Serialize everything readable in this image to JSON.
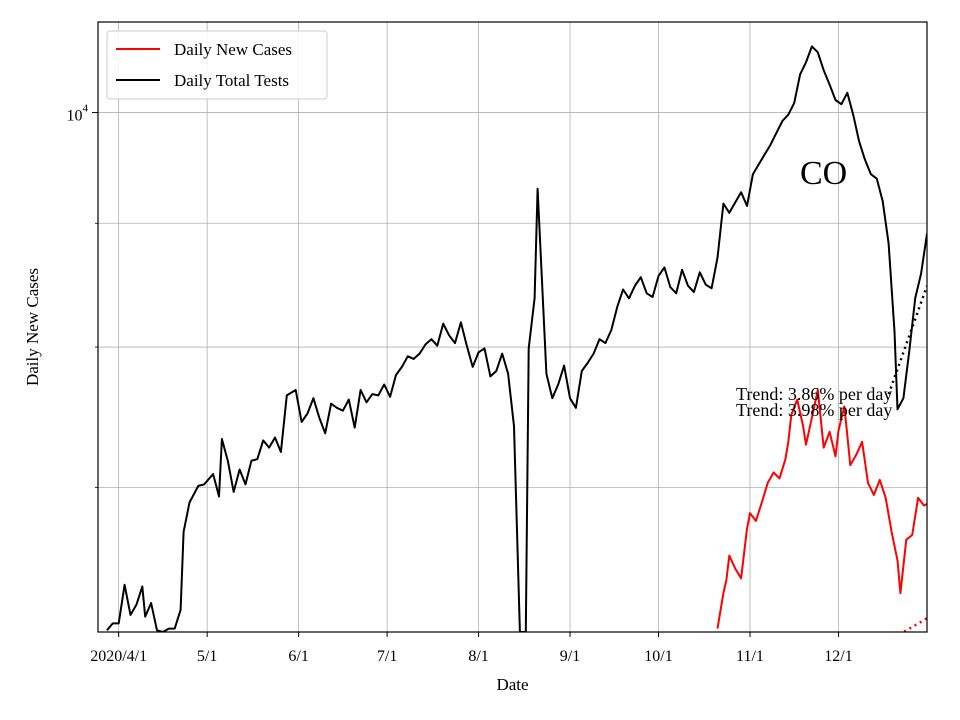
{
  "chart_data": {
    "type": "line",
    "x_axis_label": "Date",
    "y_axis_label": "Daily New Cases",
    "y_scale": "log",
    "x_tick_labels": [
      "2020/4/1",
      "5/1",
      "6/1",
      "7/1",
      "8/1",
      "9/1",
      "10/1",
      "11/1",
      "12/1"
    ],
    "x_tick_dates": [
      "2020-04-01",
      "2020-05-01",
      "2020-06-01",
      "2020-07-01",
      "2020-08-01",
      "2020-09-01",
      "2020-10-01",
      "2020-11-01",
      "2020-12-01"
    ],
    "x_range": [
      "2020-03-25",
      "2020-12-31"
    ],
    "y_range": [
      6100,
      10900
    ],
    "y_tick_label": {
      "base": "10",
      "exponent": "4",
      "value": 10000
    },
    "grid": true,
    "legend_position": "upper-left",
    "state_label": "CO",
    "series": [
      {
        "name": "Daily New Cases",
        "color": "#ff0000",
        "points": [
          [
            "2020-10-21",
            6120
          ],
          [
            "2020-10-23",
            6330
          ],
          [
            "2020-10-24",
            6410
          ],
          [
            "2020-10-25",
            6560
          ],
          [
            "2020-10-27",
            6480
          ],
          [
            "2020-10-29",
            6420
          ],
          [
            "2020-10-31",
            6730
          ],
          [
            "2020-11-01",
            6830
          ],
          [
            "2020-11-03",
            6780
          ],
          [
            "2020-11-05",
            6900
          ],
          [
            "2020-11-07",
            7030
          ],
          [
            "2020-11-09",
            7100
          ],
          [
            "2020-11-11",
            7060
          ],
          [
            "2020-11-13",
            7190
          ],
          [
            "2020-11-14",
            7310
          ],
          [
            "2020-11-15",
            7500
          ],
          [
            "2020-11-17",
            7610
          ],
          [
            "2020-11-19",
            7420
          ],
          [
            "2020-11-20",
            7290
          ],
          [
            "2020-11-22",
            7480
          ],
          [
            "2020-11-24",
            7680
          ],
          [
            "2020-11-26",
            7270
          ],
          [
            "2020-11-28",
            7380
          ],
          [
            "2020-11-30",
            7210
          ],
          [
            "2020-12-01",
            7390
          ],
          [
            "2020-12-03",
            7560
          ],
          [
            "2020-12-05",
            7150
          ],
          [
            "2020-12-07",
            7220
          ],
          [
            "2020-12-09",
            7310
          ],
          [
            "2020-12-11",
            7030
          ],
          [
            "2020-12-13",
            6950
          ],
          [
            "2020-12-15",
            7050
          ],
          [
            "2020-12-17",
            6930
          ],
          [
            "2020-12-19",
            6710
          ],
          [
            "2020-12-21",
            6530
          ],
          [
            "2020-12-22",
            6330
          ],
          [
            "2020-12-24",
            6660
          ],
          [
            "2020-12-26",
            6690
          ],
          [
            "2020-12-28",
            6930
          ],
          [
            "2020-12-30",
            6880
          ],
          [
            "2020-12-31",
            6890
          ]
        ]
      },
      {
        "name": "Daily Total Tests",
        "color": "#000000",
        "points": [
          [
            "2020-03-28",
            6110
          ],
          [
            "2020-03-30",
            6150
          ],
          [
            "2020-04-01",
            6150
          ],
          [
            "2020-04-03",
            6380
          ],
          [
            "2020-04-05",
            6200
          ],
          [
            "2020-04-07",
            6260
          ],
          [
            "2020-04-09",
            6370
          ],
          [
            "2020-04-10",
            6190
          ],
          [
            "2020-04-12",
            6270
          ],
          [
            "2020-04-14",
            6110
          ],
          [
            "2020-04-16",
            6100
          ],
          [
            "2020-04-18",
            6120
          ],
          [
            "2020-04-20",
            6120
          ],
          [
            "2020-04-22",
            6230
          ],
          [
            "2020-04-23",
            6710
          ],
          [
            "2020-04-25",
            6900
          ],
          [
            "2020-04-28",
            7010
          ],
          [
            "2020-04-30",
            7020
          ],
          [
            "2020-05-03",
            7090
          ],
          [
            "2020-05-05",
            6940
          ],
          [
            "2020-05-06",
            7330
          ],
          [
            "2020-05-08",
            7180
          ],
          [
            "2020-05-10",
            6970
          ],
          [
            "2020-05-12",
            7120
          ],
          [
            "2020-05-14",
            7020
          ],
          [
            "2020-05-16",
            7180
          ],
          [
            "2020-05-18",
            7190
          ],
          [
            "2020-05-20",
            7320
          ],
          [
            "2020-05-22",
            7270
          ],
          [
            "2020-05-24",
            7340
          ],
          [
            "2020-05-26",
            7240
          ],
          [
            "2020-05-28",
            7640
          ],
          [
            "2020-05-31",
            7680
          ],
          [
            "2020-06-02",
            7450
          ],
          [
            "2020-06-04",
            7510
          ],
          [
            "2020-06-06",
            7620
          ],
          [
            "2020-06-08",
            7480
          ],
          [
            "2020-06-10",
            7370
          ],
          [
            "2020-06-12",
            7580
          ],
          [
            "2020-06-14",
            7550
          ],
          [
            "2020-06-16",
            7530
          ],
          [
            "2020-06-18",
            7610
          ],
          [
            "2020-06-20",
            7410
          ],
          [
            "2020-06-22",
            7680
          ],
          [
            "2020-06-24",
            7590
          ],
          [
            "2020-06-26",
            7650
          ],
          [
            "2020-06-28",
            7640
          ],
          [
            "2020-06-30",
            7720
          ],
          [
            "2020-07-02",
            7630
          ],
          [
            "2020-07-04",
            7790
          ],
          [
            "2020-07-06",
            7850
          ],
          [
            "2020-07-08",
            7930
          ],
          [
            "2020-07-10",
            7910
          ],
          [
            "2020-07-12",
            7950
          ],
          [
            "2020-07-14",
            8020
          ],
          [
            "2020-07-16",
            8060
          ],
          [
            "2020-07-18",
            8010
          ],
          [
            "2020-07-20",
            8180
          ],
          [
            "2020-07-22",
            8090
          ],
          [
            "2020-07-24",
            8030
          ],
          [
            "2020-07-26",
            8190
          ],
          [
            "2020-07-28",
            8010
          ],
          [
            "2020-07-30",
            7850
          ],
          [
            "2020-08-01",
            7960
          ],
          [
            "2020-08-03",
            7990
          ],
          [
            "2020-08-05",
            7780
          ],
          [
            "2020-08-07",
            7820
          ],
          [
            "2020-08-09",
            7950
          ],
          [
            "2020-08-11",
            7800
          ],
          [
            "2020-08-13",
            7420
          ],
          [
            "2020-08-15",
            6100
          ],
          [
            "2020-08-17",
            6100
          ],
          [
            "2020-08-18",
            7990
          ],
          [
            "2020-08-20",
            8380
          ],
          [
            "2020-08-21",
            9300
          ],
          [
            "2020-08-24",
            7800
          ],
          [
            "2020-08-26",
            7620
          ],
          [
            "2020-08-28",
            7720
          ],
          [
            "2020-08-30",
            7860
          ],
          [
            "2020-09-01",
            7620
          ],
          [
            "2020-09-03",
            7550
          ],
          [
            "2020-09-05",
            7820
          ],
          [
            "2020-09-07",
            7880
          ],
          [
            "2020-09-09",
            7950
          ],
          [
            "2020-09-11",
            8060
          ],
          [
            "2020-09-13",
            8030
          ],
          [
            "2020-09-15",
            8130
          ],
          [
            "2020-09-17",
            8310
          ],
          [
            "2020-09-19",
            8450
          ],
          [
            "2020-09-21",
            8380
          ],
          [
            "2020-09-23",
            8480
          ],
          [
            "2020-09-25",
            8550
          ],
          [
            "2020-09-27",
            8420
          ],
          [
            "2020-09-29",
            8390
          ],
          [
            "2020-10-01",
            8560
          ],
          [
            "2020-10-03",
            8630
          ],
          [
            "2020-10-05",
            8470
          ],
          [
            "2020-10-07",
            8420
          ],
          [
            "2020-10-09",
            8610
          ],
          [
            "2020-10-11",
            8480
          ],
          [
            "2020-10-13",
            8430
          ],
          [
            "2020-10-15",
            8590
          ],
          [
            "2020-10-17",
            8490
          ],
          [
            "2020-10-19",
            8460
          ],
          [
            "2020-10-21",
            8710
          ],
          [
            "2020-10-23",
            9170
          ],
          [
            "2020-10-25",
            9090
          ],
          [
            "2020-10-27",
            9180
          ],
          [
            "2020-10-29",
            9270
          ],
          [
            "2020-10-31",
            9150
          ],
          [
            "2020-11-02",
            9430
          ],
          [
            "2020-11-04",
            9520
          ],
          [
            "2020-11-06",
            9610
          ],
          [
            "2020-11-08",
            9700
          ],
          [
            "2020-11-10",
            9810
          ],
          [
            "2020-11-12",
            9920
          ],
          [
            "2020-11-14",
            9980
          ],
          [
            "2020-11-16",
            10090
          ],
          [
            "2020-11-18",
            10370
          ],
          [
            "2020-11-20",
            10490
          ],
          [
            "2020-11-22",
            10650
          ],
          [
            "2020-11-24",
            10590
          ],
          [
            "2020-11-26",
            10410
          ],
          [
            "2020-11-28",
            10270
          ],
          [
            "2020-11-30",
            10120
          ],
          [
            "2020-12-02",
            10080
          ],
          [
            "2020-12-04",
            10190
          ],
          [
            "2020-12-06",
            9980
          ],
          [
            "2020-12-08",
            9730
          ],
          [
            "2020-12-10",
            9560
          ],
          [
            "2020-12-12",
            9430
          ],
          [
            "2020-12-14",
            9390
          ],
          [
            "2020-12-16",
            9190
          ],
          [
            "2020-12-18",
            8830
          ],
          [
            "2020-12-20",
            8120
          ],
          [
            "2020-12-21",
            7540
          ],
          [
            "2020-12-23",
            7620
          ],
          [
            "2020-12-25",
            7970
          ],
          [
            "2020-12-27",
            8380
          ],
          [
            "2020-12-29",
            8580
          ],
          [
            "2020-12-31",
            8910
          ]
        ]
      }
    ],
    "trend_lines": [
      {
        "label": "Trend: 3.86% per day",
        "color": "#ff0000",
        "points": [
          [
            "2020-12-18",
            6050
          ],
          [
            "2020-12-31",
            6180
          ]
        ]
      },
      {
        "label": "Trend: 3.98% per day",
        "color": "#000000",
        "points": [
          [
            "2020-12-18",
            7650
          ],
          [
            "2020-12-31",
            8480
          ]
        ]
      }
    ]
  }
}
